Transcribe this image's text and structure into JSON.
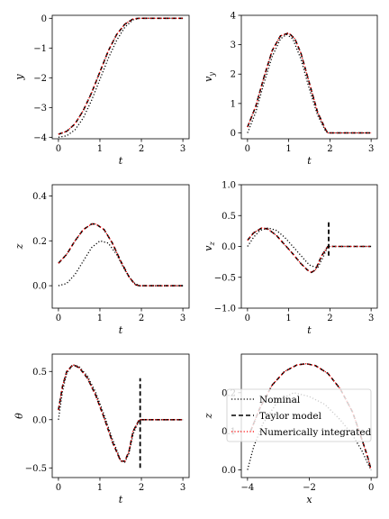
{
  "legend": {
    "entries": [
      {
        "label": "Nominal",
        "style": "dotted",
        "color": "#000000"
      },
      {
        "label": "Taylor model",
        "style": "dashed",
        "color": "#000000"
      },
      {
        "label": "Numerically integrated",
        "style": "dotted",
        "color": "#ff0000"
      }
    ],
    "placement": "center-right of panel 6"
  },
  "chart_data": [
    {
      "type": "line",
      "id": "y",
      "xlabel": "t",
      "ylabel": "y",
      "xlim": [
        -0.15,
        3.15
      ],
      "ylim": [
        -4.05,
        0.1
      ],
      "xticks": [
        0,
        1,
        2,
        3
      ],
      "yticks": [
        0,
        -1,
        -2,
        -3,
        -4
      ],
      "xticklabels": [
        "0",
        "1",
        "2",
        "3"
      ],
      "yticklabels": [
        "0",
        "−1",
        "−2",
        "−3",
        "−4"
      ],
      "series": [
        {
          "name": "Nominal",
          "x": [
            0,
            0.2,
            0.4,
            0.6,
            0.8,
            1.0,
            1.2,
            1.4,
            1.6,
            1.8,
            1.95,
            2.2,
            2.6,
            3.0
          ],
          "y": [
            -4.0,
            -3.95,
            -3.75,
            -3.35,
            -2.75,
            -2.05,
            -1.35,
            -0.75,
            -0.3,
            -0.05,
            0,
            0,
            0,
            0
          ]
        },
        {
          "name": "Taylor model",
          "x": [
            0,
            0.2,
            0.4,
            0.6,
            0.8,
            1.0,
            1.2,
            1.4,
            1.6,
            1.8,
            1.95,
            2.2,
            2.6,
            3.0
          ],
          "y": [
            -3.9,
            -3.8,
            -3.55,
            -3.1,
            -2.5,
            -1.8,
            -1.1,
            -0.55,
            -0.2,
            -0.02,
            0,
            0,
            0,
            0
          ]
        },
        {
          "name": "Numerically integrated",
          "x": [
            0,
            0.2,
            0.4,
            0.6,
            0.8,
            1.0,
            1.2,
            1.4,
            1.6,
            1.8,
            1.95,
            2.2,
            2.6,
            3.0
          ],
          "y": [
            -3.9,
            -3.8,
            -3.55,
            -3.1,
            -2.5,
            -1.8,
            -1.1,
            -0.55,
            -0.2,
            -0.02,
            0,
            0,
            0,
            0
          ]
        }
      ]
    },
    {
      "type": "line",
      "id": "vy",
      "xlabel": "t",
      "ylabel": "v_y",
      "xlim": [
        -0.15,
        3.15
      ],
      "ylim": [
        -0.2,
        4.0
      ],
      "xticks": [
        0,
        1,
        2,
        3
      ],
      "yticks": [
        0,
        1,
        2,
        3,
        4
      ],
      "xticklabels": [
        "0",
        "1",
        "2",
        "3"
      ],
      "yticklabels": [
        "0",
        "1",
        "2",
        "3",
        "4"
      ],
      "series": [
        {
          "name": "Nominal",
          "x": [
            0,
            0.2,
            0.4,
            0.6,
            0.8,
            0.95,
            1.1,
            1.3,
            1.5,
            1.7,
            1.9,
            1.95,
            2.2,
            2.6,
            3.0
          ],
          "y": [
            0,
            0.7,
            1.7,
            2.6,
            3.2,
            3.35,
            3.2,
            2.5,
            1.5,
            0.6,
            0.05,
            0,
            0,
            0,
            0
          ]
        },
        {
          "name": "Taylor model",
          "x": [
            0,
            0.2,
            0.4,
            0.6,
            0.8,
            1.0,
            1.15,
            1.3,
            1.5,
            1.7,
            1.9,
            1.95,
            2.2,
            2.6,
            3.0
          ],
          "y": [
            0.2,
            0.9,
            1.9,
            2.8,
            3.3,
            3.4,
            3.2,
            2.7,
            1.7,
            0.7,
            0.1,
            0,
            0,
            0,
            0
          ]
        },
        {
          "name": "Numerically integrated",
          "x": [
            0,
            0.2,
            0.4,
            0.6,
            0.8,
            1.0,
            1.15,
            1.3,
            1.5,
            1.7,
            1.9,
            1.95,
            2.2,
            2.6,
            3.0
          ],
          "y": [
            0.2,
            0.9,
            1.9,
            2.8,
            3.3,
            3.4,
            3.2,
            2.7,
            1.7,
            0.7,
            0.1,
            0,
            0,
            0,
            0
          ]
        }
      ]
    },
    {
      "type": "line",
      "id": "z",
      "xlabel": "t",
      "ylabel": "z",
      "xlim": [
        -0.15,
        3.15
      ],
      "ylim": [
        -0.1,
        0.45
      ],
      "xticks": [
        0,
        1,
        2,
        3
      ],
      "yticks": [
        0.0,
        0.2,
        0.4
      ],
      "xticklabels": [
        "0",
        "1",
        "2",
        "3"
      ],
      "yticklabels": [
        "0.0",
        "0.2",
        "0.4"
      ],
      "series": [
        {
          "name": "Nominal",
          "x": [
            0,
            0.2,
            0.4,
            0.6,
            0.8,
            1.0,
            1.2,
            1.4,
            1.6,
            1.8,
            1.95,
            2.2,
            2.6,
            3.0
          ],
          "y": [
            0,
            0.01,
            0.05,
            0.11,
            0.17,
            0.2,
            0.19,
            0.14,
            0.07,
            0.015,
            0,
            0,
            0,
            0
          ]
        },
        {
          "name": "Taylor model",
          "x": [
            0,
            0.2,
            0.4,
            0.6,
            0.8,
            0.9,
            1.1,
            1.3,
            1.5,
            1.7,
            1.85,
            1.95,
            2.2,
            2.6,
            3.0
          ],
          "y": [
            0.1,
            0.14,
            0.2,
            0.25,
            0.275,
            0.275,
            0.25,
            0.19,
            0.11,
            0.04,
            0.005,
            0,
            0,
            0,
            0
          ]
        },
        {
          "name": "Numerically integrated",
          "x": [
            0,
            0.2,
            0.4,
            0.6,
            0.8,
            0.9,
            1.1,
            1.3,
            1.5,
            1.7,
            1.85,
            1.95,
            2.2,
            2.6,
            3.0
          ],
          "y": [
            0.1,
            0.14,
            0.2,
            0.25,
            0.275,
            0.275,
            0.25,
            0.19,
            0.11,
            0.04,
            0.005,
            0,
            0,
            0,
            0
          ]
        }
      ]
    },
    {
      "type": "line",
      "id": "vz",
      "xlabel": "t",
      "ylabel": "v_z",
      "xlim": [
        -0.15,
        3.15
      ],
      "ylim": [
        -1.0,
        1.0
      ],
      "xticks": [
        0,
        1,
        2,
        3
      ],
      "yticks": [
        1.0,
        0.5,
        0.0,
        -0.5,
        -1.0
      ],
      "xticklabels": [
        "0",
        "1",
        "2",
        "3"
      ],
      "yticklabels": [
        "1.0",
        "0.5",
        "0.0",
        "−0.5",
        "−1.0"
      ],
      "series": [
        {
          "name": "Nominal",
          "x": [
            0,
            0.15,
            0.3,
            0.5,
            0.7,
            0.9,
            1.1,
            1.3,
            1.5,
            1.7,
            1.85,
            1.95,
            2.2,
            2.6,
            3.0
          ],
          "y": [
            0,
            0.15,
            0.26,
            0.3,
            0.26,
            0.15,
            0,
            -0.15,
            -0.3,
            -0.35,
            -0.15,
            0,
            0,
            0,
            0
          ]
        },
        {
          "name": "Taylor model",
          "x": [
            0,
            0.15,
            0.35,
            0.5,
            0.7,
            0.9,
            1.1,
            1.3,
            1.45,
            1.55,
            1.65,
            1.8,
            1.95,
            2.2,
            2.6,
            3.0
          ],
          "y": [
            0.1,
            0.22,
            0.3,
            0.28,
            0.18,
            0.03,
            -0.12,
            -0.28,
            -0.38,
            -0.42,
            -0.38,
            -0.15,
            0,
            0,
            0,
            0
          ]
        },
        {
          "name": "Numerically integrated",
          "x": [
            0,
            0.15,
            0.35,
            0.5,
            0.7,
            0.9,
            1.1,
            1.3,
            1.45,
            1.55,
            1.65,
            1.8,
            1.95,
            2.2,
            2.6,
            3.0
          ],
          "y": [
            0.1,
            0.22,
            0.3,
            0.28,
            0.18,
            0.03,
            -0.12,
            -0.28,
            -0.38,
            -0.42,
            -0.38,
            -0.15,
            0,
            0,
            0,
            0
          ]
        }
      ],
      "spike": {
        "x": 1.97,
        "y": [
          -0.15,
          0.4
        ]
      }
    },
    {
      "type": "line",
      "id": "theta",
      "xlabel": "t",
      "ylabel": "θ",
      "xlim": [
        -0.15,
        3.15
      ],
      "ylim": [
        -0.6,
        0.68
      ],
      "xticks": [
        0,
        1,
        2,
        3
      ],
      "yticks": [
        0.5,
        0.0,
        -0.5
      ],
      "xticklabels": [
        "0",
        "1",
        "2",
        "3"
      ],
      "yticklabels": [
        "0.5",
        "0.0",
        "−0.5"
      ],
      "series": [
        {
          "name": "Nominal",
          "x": [
            0,
            0.1,
            0.2,
            0.35,
            0.5,
            0.7,
            0.9,
            1.1,
            1.3,
            1.5,
            1.6,
            1.7,
            1.8,
            1.95,
            2.2,
            2.6,
            3.0
          ],
          "y": [
            0,
            0.3,
            0.48,
            0.57,
            0.55,
            0.45,
            0.28,
            0.05,
            -0.2,
            -0.42,
            -0.44,
            -0.35,
            -0.15,
            0,
            0,
            0,
            0
          ]
        },
        {
          "name": "Taylor model",
          "x": [
            0,
            0.1,
            0.2,
            0.35,
            0.5,
            0.7,
            0.9,
            1.1,
            1.3,
            1.5,
            1.6,
            1.7,
            1.8,
            1.95,
            2.2,
            2.6,
            3.0
          ],
          "y": [
            0.1,
            0.35,
            0.5,
            0.57,
            0.54,
            0.43,
            0.25,
            0.02,
            -0.23,
            -0.43,
            -0.43,
            -0.33,
            -0.12,
            0,
            0,
            0,
            0
          ]
        },
        {
          "name": "Numerically integrated",
          "x": [
            0,
            0.1,
            0.2,
            0.35,
            0.5,
            0.7,
            0.9,
            1.1,
            1.3,
            1.5,
            1.6,
            1.7,
            1.8,
            1.95,
            2.2,
            2.6,
            3.0
          ],
          "y": [
            0.1,
            0.35,
            0.5,
            0.57,
            0.54,
            0.43,
            0.25,
            0.02,
            -0.23,
            -0.43,
            -0.43,
            -0.33,
            -0.12,
            0,
            0,
            0,
            0
          ]
        }
      ],
      "spike": {
        "x": 1.97,
        "y": [
          -0.5,
          0.43
        ]
      }
    },
    {
      "type": "line",
      "id": "xz",
      "xlabel": "x",
      "ylabel": "z",
      "xlim": [
        -4.2,
        0.2
      ],
      "ylim": [
        -0.02,
        0.3
      ],
      "xticks": [
        -4,
        -2,
        0
      ],
      "yticks": [
        0.0,
        0.1,
        0.2
      ],
      "xticklabels": [
        "−4",
        "−2",
        "0"
      ],
      "yticklabels": [
        "0.0",
        "0.1",
        "0.2"
      ],
      "series": [
        {
          "name": "Nominal",
          "x": [
            -4.0,
            -3.8,
            -3.5,
            -3.0,
            -2.5,
            -2.0,
            -1.5,
            -1.0,
            -0.6,
            -0.3,
            -0.1,
            0
          ],
          "y": [
            0,
            0.06,
            0.12,
            0.18,
            0.2,
            0.19,
            0.17,
            0.13,
            0.09,
            0.05,
            0.015,
            0
          ]
        },
        {
          "name": "Taylor model",
          "x": [
            -3.9,
            -3.6,
            -3.2,
            -2.8,
            -2.4,
            -2.1,
            -1.8,
            -1.4,
            -1.0,
            -0.6,
            -0.3,
            -0.1,
            0
          ],
          "y": [
            0.1,
            0.16,
            0.22,
            0.255,
            0.272,
            0.275,
            0.27,
            0.25,
            0.21,
            0.15,
            0.08,
            0.03,
            0
          ]
        },
        {
          "name": "Numerically integrated",
          "x": [
            -3.9,
            -3.6,
            -3.2,
            -2.8,
            -2.4,
            -2.1,
            -1.8,
            -1.4,
            -1.0,
            -0.6,
            -0.3,
            -0.1,
            0
          ],
          "y": [
            0.1,
            0.16,
            0.22,
            0.255,
            0.272,
            0.275,
            0.27,
            0.25,
            0.21,
            0.15,
            0.08,
            0.03,
            0
          ]
        }
      ]
    }
  ]
}
